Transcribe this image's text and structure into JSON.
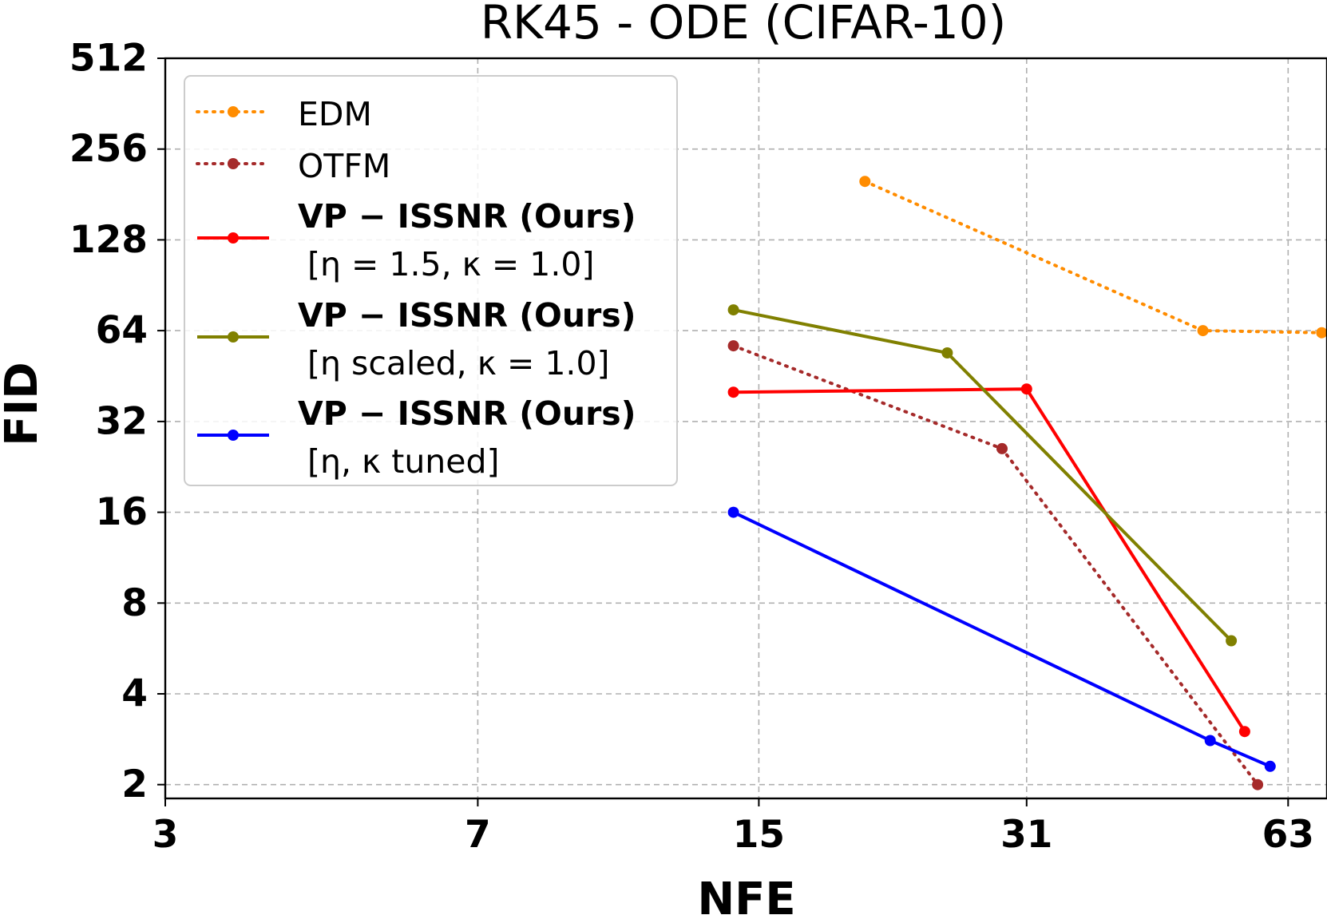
{
  "chart_data": {
    "type": "line",
    "title": "RK45 - ODE (CIFAR-10)",
    "xlabel": "NFE",
    "ylabel": "FID",
    "xscale": "log2",
    "yscale": "log2",
    "xticks": [
      3,
      7,
      15,
      31,
      63
    ],
    "xtick_labels": [
      "3",
      "7",
      "15",
      "31",
      "63"
    ],
    "yticks": [
      2,
      4,
      8,
      16,
      32,
      64,
      128,
      256,
      512
    ],
    "ytick_labels": [
      "2",
      "4",
      "8",
      "16",
      "32",
      "64",
      "128",
      "256",
      "512"
    ],
    "xlim": [
      3,
      70
    ],
    "ylim": [
      1.8,
      512
    ],
    "grid": true,
    "legend_position": "upper-left",
    "series": [
      {
        "name": "EDM",
        "legend_lines": [
          "EDM"
        ],
        "legend_bold": false,
        "color": "#ff8c00",
        "linestyle": "dotted",
        "x": [
          20,
          50,
          69
        ],
        "y": [
          200,
          64,
          63
        ]
      },
      {
        "name": "OTFM",
        "legend_lines": [
          "OTFM"
        ],
        "legend_bold": false,
        "color": "#a52a2a",
        "linestyle": "dotted",
        "x": [
          14,
          29,
          58
        ],
        "y": [
          57,
          26,
          2
        ]
      },
      {
        "name": "VP-ISSNR (Ours) [η=1.5, κ=1.0]",
        "legend_lines": [
          "VP − ISSNR (Ours)",
          "[η = 1.5, κ = 1.0]"
        ],
        "legend_bold": true,
        "color": "#ff0000",
        "linestyle": "solid",
        "x": [
          14,
          31,
          56
        ],
        "y": [
          40,
          41,
          3
        ]
      },
      {
        "name": "VP-ISSNR (Ours) [η scaled, κ=1.0]",
        "legend_lines": [
          "VP − ISSNR (Ours)",
          "[η scaled, κ = 1.0]"
        ],
        "legend_bold": true,
        "color": "#808000",
        "linestyle": "solid",
        "x": [
          14,
          25,
          54
        ],
        "y": [
          75,
          54,
          6
        ]
      },
      {
        "name": "VP-ISSNR (Ours) [η, κ tuned]",
        "legend_lines": [
          "VP − ISSNR (Ours)",
          "[η, κ tuned]"
        ],
        "legend_bold": true,
        "color": "#0000ff",
        "linestyle": "solid",
        "x": [
          14,
          51,
          60
        ],
        "y": [
          16,
          2.8,
          2.3
        ]
      }
    ]
  }
}
